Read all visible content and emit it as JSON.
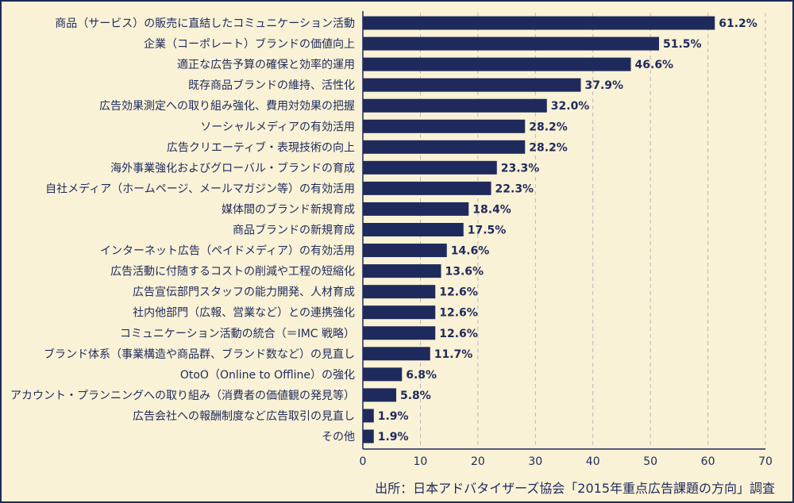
{
  "chart_data": {
    "type": "bar",
    "orientation": "horizontal",
    "categories": [
      "商品（サービス）の販売に直結したコミュニケーション活動",
      "企業（コーポレート）ブランドの価値向上",
      "適正な広告予算の確保と効率的運用",
      "既存商品ブランドの維持、活性化",
      "広告効果測定への取り組み強化、費用対効果の把握",
      "ソーシャルメディアの有効活用",
      "広告クリエーティブ・表現技術の向上",
      "海外事業強化およびグローバル・ブランドの育成",
      "自社メディア（ホームページ、メールマガジン等）の有効活用",
      "媒体間のブランド新規育成",
      "商品ブランドの新規育成",
      "インターネット広告（ペイドメディア）の有効活用",
      "広告活動に付随するコストの削減や工程の短縮化",
      "広告宣伝部門スタッフの能力開発、人材育成",
      "社内他部門（広報、営業など）との連携強化",
      "コミュニケーション活動の統合（＝IMC 戦略）",
      "ブランド体系（事業構造や商品群、ブランド数など）の見直し",
      "OtoO（Online to Offline）の強化",
      "アカウント・プランニングへの取り組み（消費者の価値観の発見等）",
      "広告会社への報酬制度など広告取引の見直し",
      "その他"
    ],
    "values": [
      61.2,
      51.5,
      46.6,
      37.9,
      32.0,
      28.2,
      28.2,
      23.3,
      22.3,
      18.4,
      17.5,
      14.6,
      13.6,
      12.6,
      12.6,
      12.6,
      11.7,
      6.8,
      5.8,
      1.9,
      1.9
    ],
    "value_labels": [
      "61.2%",
      "51.5%",
      "46.6%",
      "37.9%",
      "32.0%",
      "28.2%",
      "28.2%",
      "23.3%",
      "22.3%",
      "18.4%",
      "17.5%",
      "14.6%",
      "13.6%",
      "12.6%",
      "12.6%",
      "12.6%",
      "11.7%",
      "6.8%",
      "5.8%",
      "1.9%",
      "1.9%"
    ],
    "xlim": [
      0,
      70
    ],
    "xticks": [
      0,
      10,
      20,
      30,
      40,
      50,
      60,
      70
    ],
    "grid": true,
    "title": "",
    "xlabel": "",
    "ylabel": "",
    "colors": {
      "bar": "#1f2a5c",
      "background": "#f9f2d6",
      "text": "#1f2a5c",
      "grid": "#b8b8b8"
    }
  },
  "source": "出所：日本アドバタイザーズ協会「2015年重点広告課題の方向」調査"
}
